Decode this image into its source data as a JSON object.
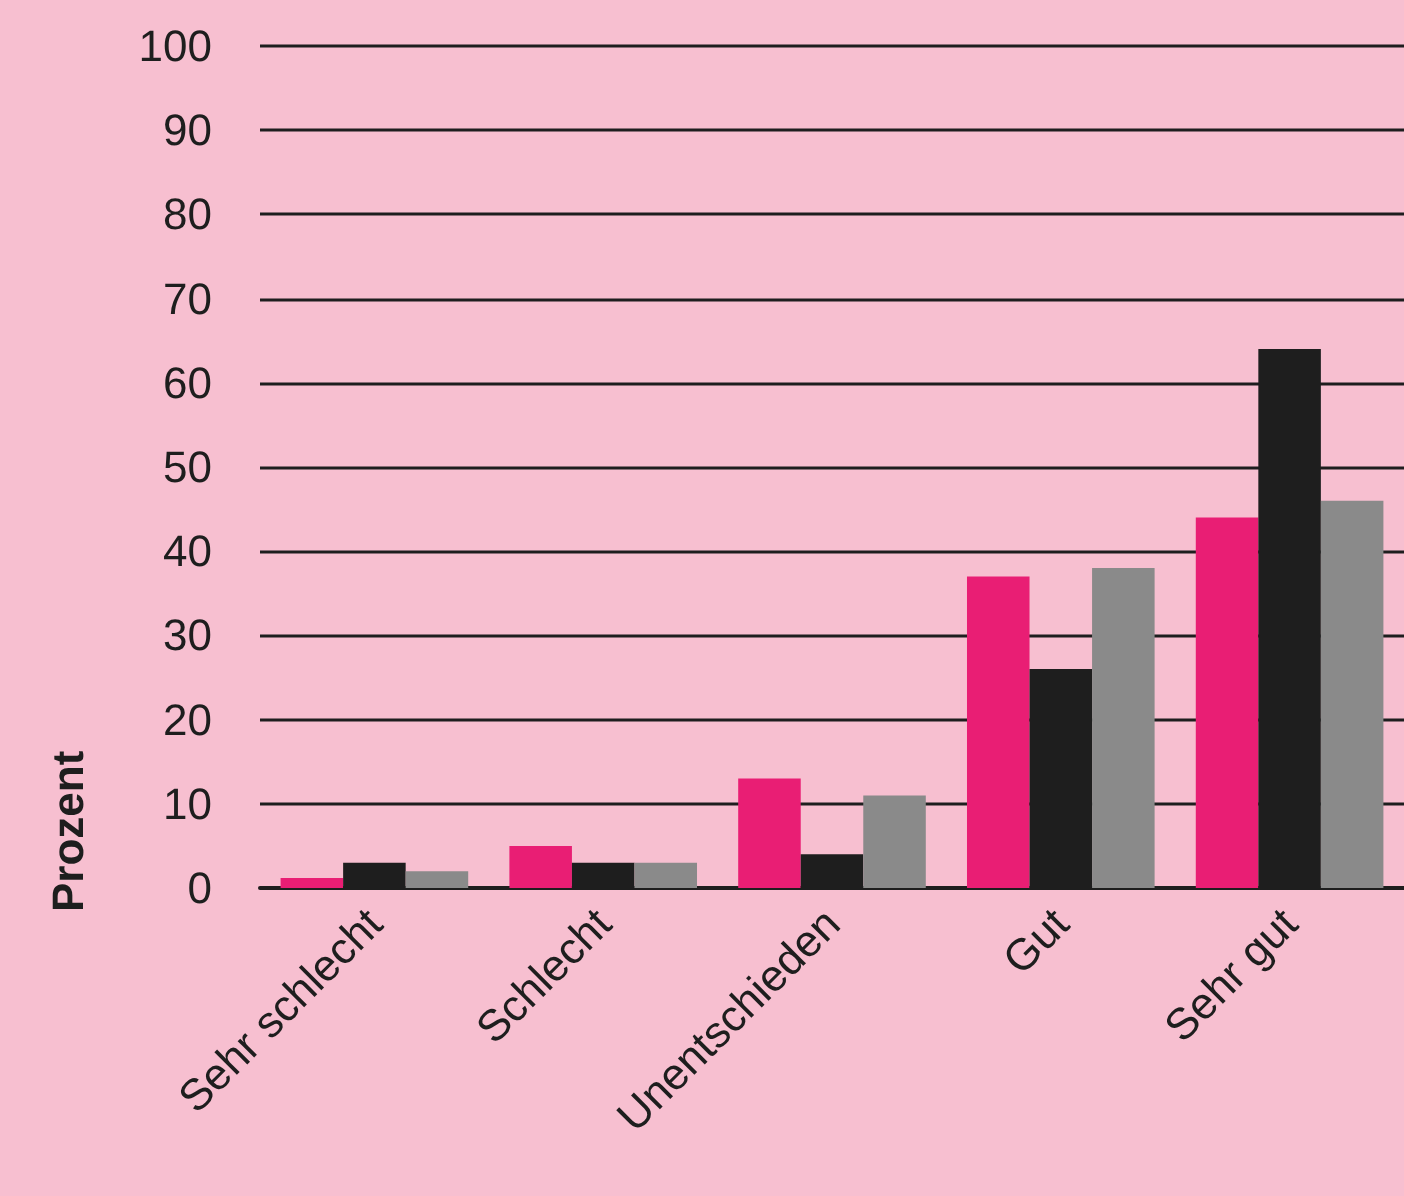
{
  "chart_data": {
    "type": "bar",
    "ylabel": "Prozent",
    "categories": [
      "Sehr schlecht",
      "Schlecht",
      "Unentschieden",
      "Gut",
      "Sehr gut"
    ],
    "series": [
      {
        "color": "#e91e74",
        "values": [
          1.2,
          5,
          13,
          37,
          44
        ]
      },
      {
        "color": "#1e1e1e",
        "values": [
          3,
          3,
          4,
          26,
          64
        ]
      },
      {
        "color": "#8a8a8a",
        "values": [
          2,
          3,
          11,
          38,
          46
        ]
      }
    ],
    "ylim": [
      0,
      100
    ],
    "yticks": [
      0,
      10,
      20,
      30,
      40,
      50,
      60,
      70,
      80,
      90,
      100
    ],
    "grid": "y"
  }
}
